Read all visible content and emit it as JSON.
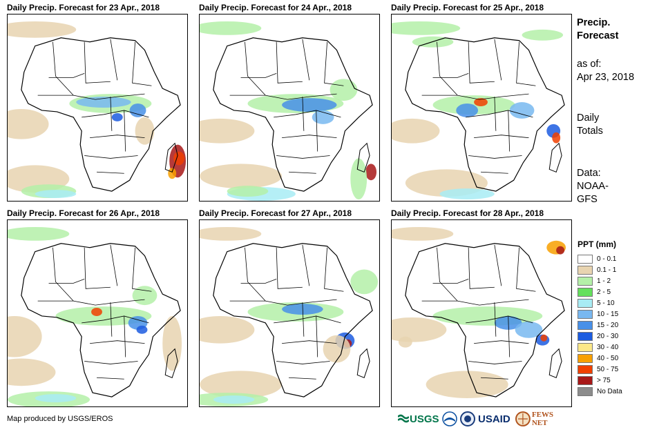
{
  "panels": [
    {
      "title": "Daily Precip. Forecast for 23 Apr., 2018"
    },
    {
      "title": "Daily Precip. Forecast for 24 Apr., 2018"
    },
    {
      "title": "Daily Precip. Forecast for 25 Apr., 2018"
    },
    {
      "title": "Daily Precip. Forecast for 26 Apr., 2018"
    },
    {
      "title": "Daily Precip. Forecast for 27 Apr., 2018"
    },
    {
      "title": "Daily Precip. Forecast for 28 Apr., 2018"
    }
  ],
  "sidebar": {
    "heading_line1": "Precip.",
    "heading_line2": "Forecast",
    "asof_line1": "as of:",
    "asof_line2": "Apr 23, 2018",
    "totals_line1": "Daily",
    "totals_line2": "Totals",
    "data_line1": "Data:",
    "data_line2": "NOAA-",
    "data_line3": "GFS"
  },
  "legend": {
    "title": "PPT (mm)",
    "items": [
      {
        "label": "0 - 0.1",
        "color": "#ffffff"
      },
      {
        "label": "0.1 - 1",
        "color": "#e8d4b0"
      },
      {
        "label": "1 - 2",
        "color": "#b4f0a8"
      },
      {
        "label": "2 - 5",
        "color": "#64e05c"
      },
      {
        "label": "5 - 10",
        "color": "#a8ecf4"
      },
      {
        "label": "10 - 15",
        "color": "#78b8f0"
      },
      {
        "label": "15 - 20",
        "color": "#4890e8"
      },
      {
        "label": "20 - 30",
        "color": "#1c5ce0"
      },
      {
        "label": "30 - 40",
        "color": "#fce888"
      },
      {
        "label": "40 - 50",
        "color": "#f8a000"
      },
      {
        "label": "50 - 75",
        "color": "#f04000"
      },
      {
        "label": "> 75",
        "color": "#a81818"
      },
      {
        "label": "No Data",
        "color": "#8c8c8c"
      }
    ]
  },
  "footer": {
    "credit": "Map produced by USGS/EROS",
    "logos": [
      {
        "text": "USGS",
        "color": "#00754a"
      },
      {
        "text": "USAID",
        "color": "#0a2e6e"
      },
      {
        "text": "FEWS NET",
        "color": "#b0521c"
      }
    ]
  }
}
